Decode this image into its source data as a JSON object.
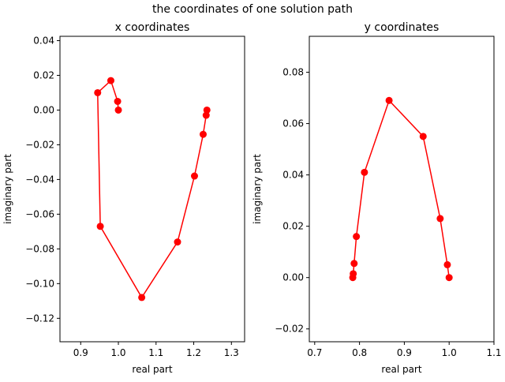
{
  "figure": {
    "title": "the coordinates of one solution path"
  },
  "style": {
    "series_color": "#ff0000",
    "axes_color": "#000000",
    "background": "#ffffff"
  },
  "chart_data": [
    {
      "type": "line",
      "title": "x coordinates",
      "xlabel": "real part",
      "ylabel": "imaginary part",
      "xlim": [
        0.845,
        1.335
      ],
      "ylim": [
        -0.1335,
        0.0425
      ],
      "xticks": [
        0.9,
        1.0,
        1.1,
        1.2,
        1.3
      ],
      "xtick_labels": [
        "0.9",
        "1.0",
        "1.1",
        "1.2",
        "1.3"
      ],
      "yticks": [
        0.04,
        0.02,
        0.0,
        -0.02,
        -0.04,
        -0.06,
        -0.08,
        -0.1,
        -0.12
      ],
      "ytick_labels": [
        "0.04",
        "0.02",
        "0.00",
        "−0.02",
        "−0.04",
        "−0.06",
        "−0.08",
        "−0.10",
        "−0.12"
      ],
      "grid": false,
      "series": [
        {
          "marker": "circle",
          "x": [
            1.0,
            0.998,
            0.98,
            0.945,
            0.952,
            1.062,
            1.157,
            1.202,
            1.225,
            1.233,
            1.235
          ],
          "y": [
            0.0,
            0.005,
            0.017,
            0.01,
            -0.067,
            -0.108,
            -0.076,
            -0.038,
            -0.014,
            -0.003,
            0.0
          ]
        }
      ]
    },
    {
      "type": "line",
      "title": "y coordinates",
      "xlabel": "real part",
      "ylabel": "imaginary part",
      "xlim": [
        0.688,
        1.1
      ],
      "ylim": [
        -0.025,
        0.094
      ],
      "xticks": [
        0.7,
        0.8,
        0.9,
        1.0,
        1.1
      ],
      "xtick_labels": [
        "0.7",
        "0.8",
        "0.9",
        "1.0",
        "1.1"
      ],
      "yticks": [
        0.08,
        0.06,
        0.04,
        0.02,
        0.0,
        -0.02
      ],
      "ytick_labels": [
        "0.08",
        "0.06",
        "0.04",
        "0.02",
        "0.00",
        "−0.02"
      ],
      "grid": false,
      "series": [
        {
          "marker": "circle",
          "x": [
            1.0,
            0.996,
            0.98,
            0.942,
            0.866,
            0.811,
            0.793,
            0.788,
            0.786,
            0.785
          ],
          "y": [
            0.0,
            0.005,
            0.023,
            0.055,
            0.069,
            0.041,
            0.016,
            0.0055,
            0.0015,
            0.0
          ]
        }
      ]
    }
  ]
}
